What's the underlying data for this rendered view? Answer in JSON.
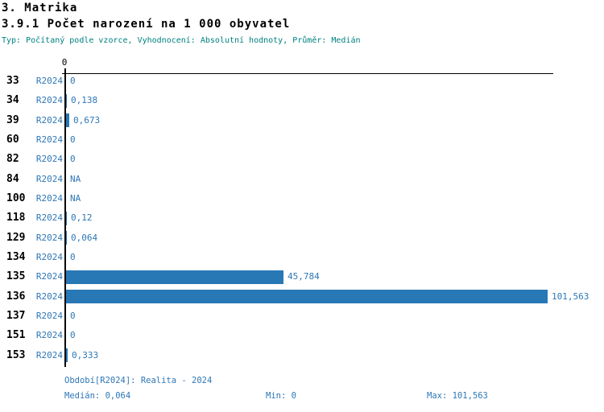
{
  "header": {
    "title": "3. Matrika",
    "subtitle": "3.9.1 Počet narození na 1 000 obyvatel",
    "meta": "Typ: Počítaný podle vzorce, Vyhodnocení: Absolutní hodnoty, Průměr: Medián"
  },
  "colors": {
    "bar": "#2878b6",
    "text_blue": "#2e77b6",
    "meta_teal": "#008080",
    "axis": "#000000"
  },
  "chart_data": {
    "type": "bar",
    "orientation": "horizontal",
    "title": "3.9.1 Počet narození na 1 000 obyvatel",
    "series_label": "R2024",
    "axis_zero_label": "0",
    "categories": [
      "33",
      "34",
      "39",
      "60",
      "82",
      "84",
      "100",
      "118",
      "129",
      "134",
      "135",
      "136",
      "137",
      "151",
      "153"
    ],
    "values": [
      0,
      0.138,
      0.673,
      0,
      0,
      null,
      null,
      0.12,
      0.064,
      0,
      45.784,
      101.563,
      0,
      0,
      0.333
    ],
    "value_labels": [
      "0",
      "0,138",
      "0,673",
      "0",
      "0",
      "NA",
      "NA",
      "0,12",
      "0,064",
      "0",
      "45,784",
      "101,563",
      "0",
      "0",
      "0,333"
    ],
    "xlim": [
      0,
      101.563
    ],
    "grid": false,
    "legend": false
  },
  "footer": {
    "period": "Období[R2024]: Realita - 2024",
    "median": "Medián: 0,064",
    "min": "Min: 0",
    "max": "Max: 101,563"
  }
}
